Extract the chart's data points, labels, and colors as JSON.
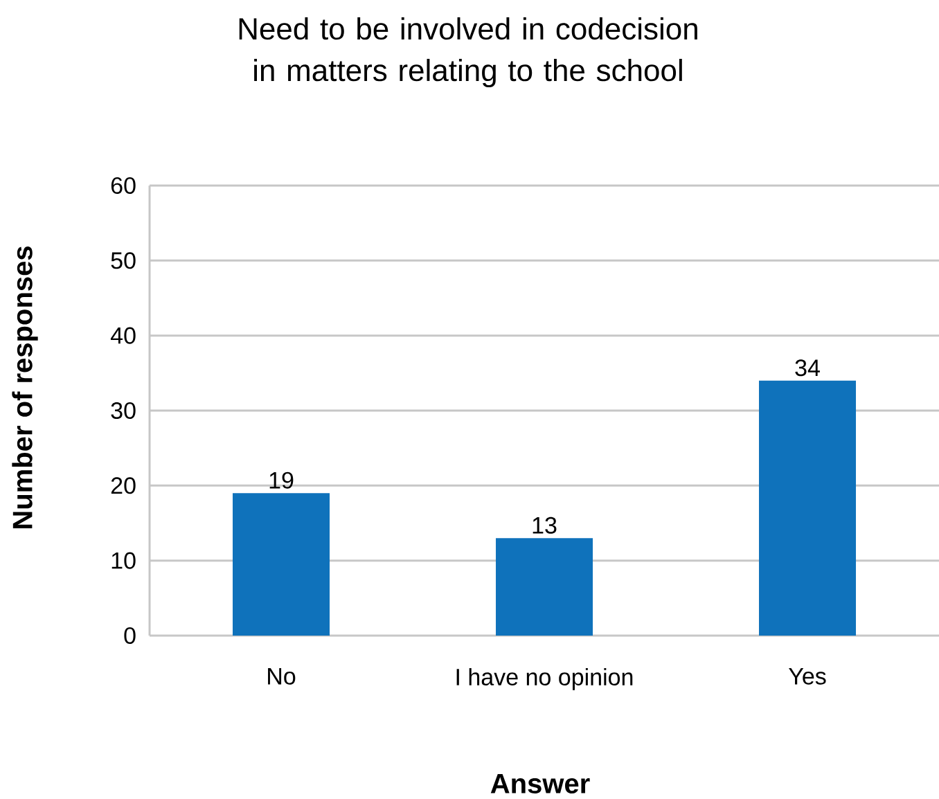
{
  "chart_data": {
    "type": "bar",
    "title": "Need to be involved in codecision in matters relating to the school",
    "xlabel": "Answer",
    "ylabel": "Number of responses",
    "categories": [
      "No",
      "I have no opinion",
      "Yes"
    ],
    "values": [
      19,
      13,
      34
    ],
    "color": "#0f72bb",
    "ylim": [
      0,
      60
    ],
    "yticks": [
      0,
      10,
      20,
      30,
      40,
      50,
      60
    ],
    "grid": "y",
    "data_labels": true
  }
}
